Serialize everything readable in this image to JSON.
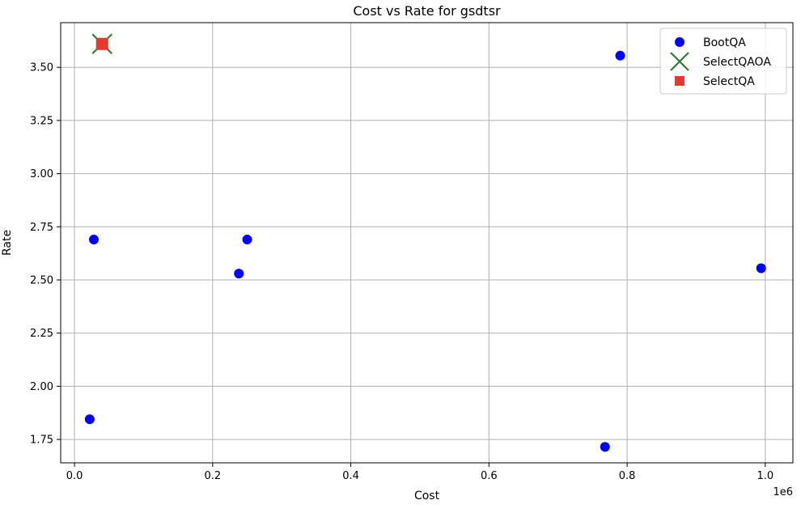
{
  "chart_data": {
    "type": "scatter",
    "title": "Cost vs Rate for gsdtsr",
    "xlabel": "Cost",
    "ylabel": "Rate",
    "x_offset_label": "1e6",
    "xlim": [
      -0.02,
      1.04
    ],
    "ylim": [
      1.64,
      3.71
    ],
    "xticks": [
      0.0,
      0.2,
      0.4,
      0.6,
      0.8,
      1.0
    ],
    "xtick_labels": [
      "0.0",
      "0.2",
      "0.4",
      "0.6",
      "0.8",
      "1.0"
    ],
    "yticks": [
      1.75,
      2.0,
      2.25,
      2.5,
      2.75,
      3.0,
      3.25,
      3.5
    ],
    "ytick_labels": [
      "1.75",
      "2.00",
      "2.25",
      "2.50",
      "2.75",
      "3.00",
      "3.25",
      "3.50"
    ],
    "grid": true,
    "legend_position": "top-right",
    "series": [
      {
        "name": "BootQA",
        "marker": "circle",
        "color": "#0000ff",
        "points": [
          {
            "x": 0.022,
            "y": 1.845
          },
          {
            "x": 0.028,
            "y": 2.69
          },
          {
            "x": 0.238,
            "y": 2.53
          },
          {
            "x": 0.25,
            "y": 2.69
          },
          {
            "x": 0.768,
            "y": 1.715
          },
          {
            "x": 0.79,
            "y": 3.555
          },
          {
            "x": 0.994,
            "y": 2.555
          }
        ]
      },
      {
        "name": "SelectQAOA",
        "marker": "x",
        "color": "#2e7d32",
        "points": [
          {
            "x": 0.04,
            "y": 3.61
          }
        ]
      },
      {
        "name": "SelectQA",
        "marker": "square",
        "color": "#e8392f",
        "points": [
          {
            "x": 0.04,
            "y": 3.61
          }
        ]
      }
    ]
  }
}
